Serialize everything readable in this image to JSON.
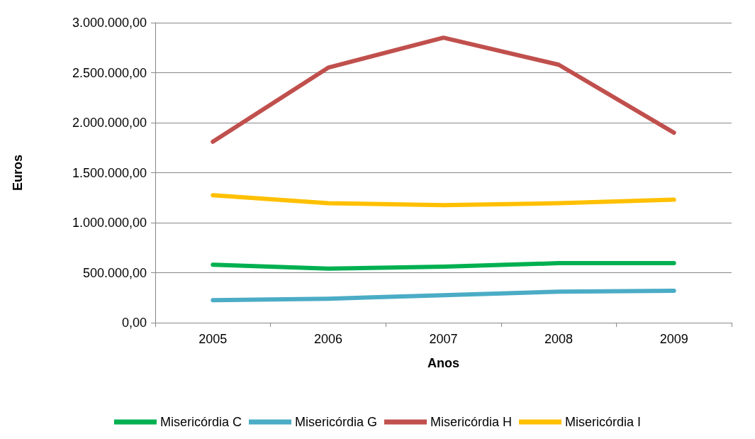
{
  "chart_data": {
    "type": "line",
    "xlabel": "Anos",
    "ylabel": "Euros",
    "categories": [
      "2005",
      "2006",
      "2007",
      "2008",
      "2009"
    ],
    "series": [
      {
        "name": "Misericórdia C",
        "color": "#00b050",
        "values": [
          580000,
          540000,
          560000,
          595000,
          595000
        ]
      },
      {
        "name": "Misericórdia G",
        "color": "#4bacc6",
        "values": [
          225000,
          240000,
          275000,
          310000,
          320000
        ]
      },
      {
        "name": "Misericórdia H",
        "color": "#c0504d",
        "values": [
          1810000,
          2550000,
          2850000,
          2580000,
          1900000
        ]
      },
      {
        "name": "Misericórdia I",
        "color": "#ffc000",
        "values": [
          1275000,
          1195000,
          1175000,
          1195000,
          1230000
        ]
      }
    ],
    "ylim": [
      0,
      3000000
    ],
    "yticks": [
      {
        "value": 0,
        "label": "0,00"
      },
      {
        "value": 500000,
        "label": "500.000,00"
      },
      {
        "value": 1000000,
        "label": "1.000.000,00"
      },
      {
        "value": 1500000,
        "label": "1.500.000,00"
      },
      {
        "value": 2000000,
        "label": "2.000.000,00"
      },
      {
        "value": 2500000,
        "label": "2.500.000,00"
      },
      {
        "value": 3000000,
        "label": "3.000.000,00"
      }
    ],
    "grid": "y",
    "legend": "bottom",
    "marker": "none",
    "line_style": "solid"
  }
}
